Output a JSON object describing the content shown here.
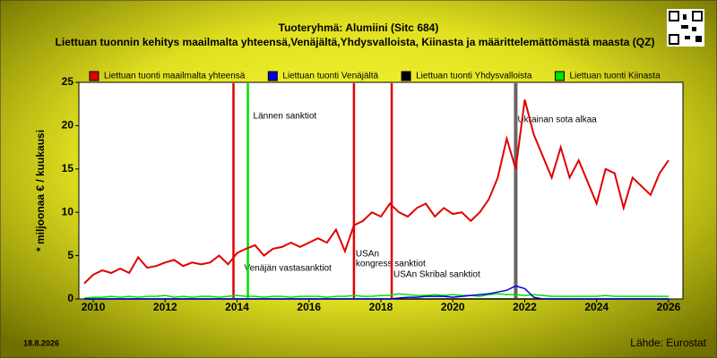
{
  "chart_data": {
    "type": "line",
    "title": "Tuoteryhmä: Alumiini (Sitc 684)",
    "subtitle": "Liettuan tuonnin kehitys maailmalta yhteensä,Venäjältä,Yhdysvalloista, Kiinasta ja määrittelemättömästä maasta (QZ)",
    "y_label": "* miljoonaa € / kuukausi",
    "date": "18.8.2026",
    "source": "Lähde: Eurostat",
    "xlim": [
      2009.6,
      2026.4
    ],
    "xticks": [
      2010,
      2012,
      2014,
      2016,
      2018,
      2020,
      2022,
      2024,
      2026
    ],
    "ylim": [
      0,
      25
    ],
    "yticks": [
      0,
      5,
      10,
      15,
      20,
      25
    ],
    "grid": false,
    "x": [
      2009.75,
      2010,
      2010.25,
      2010.5,
      2010.75,
      2011,
      2011.25,
      2011.5,
      2011.75,
      2012,
      2012.25,
      2012.5,
      2012.75,
      2013,
      2013.25,
      2013.5,
      2013.75,
      2014,
      2014.25,
      2014.5,
      2014.75,
      2015,
      2015.25,
      2015.5,
      2015.75,
      2016,
      2016.25,
      2016.5,
      2016.75,
      2017,
      2017.25,
      2017.5,
      2017.75,
      2018,
      2018.25,
      2018.5,
      2018.75,
      2019,
      2019.25,
      2019.5,
      2019.75,
      2020,
      2020.25,
      2020.5,
      2020.75,
      2021,
      2021.25,
      2021.5,
      2021.75,
      2022,
      2022.25,
      2022.5,
      2022.75,
      2023,
      2023.25,
      2023.5,
      2023.75,
      2024,
      2024.25,
      2024.5,
      2024.75,
      2025,
      2025.25,
      2025.5,
      2025.75,
      2026
    ],
    "series": [
      {
        "name": "Liettuan tuonti maailmalta yhteensä",
        "color": "#e00000",
        "values": [
          1.8,
          2.8,
          3.3,
          3.0,
          3.5,
          3.0,
          4.8,
          3.6,
          3.8,
          4.2,
          4.5,
          3.8,
          4.2,
          4.0,
          4.2,
          5.0,
          4.0,
          5.3,
          5.8,
          6.2,
          5.0,
          5.8,
          6.0,
          6.5,
          6.0,
          6.5,
          7.0,
          6.5,
          8.0,
          5.5,
          8.5,
          9.0,
          10.0,
          9.5,
          11.0,
          10.0,
          9.5,
          10.5,
          11.0,
          9.5,
          10.5,
          9.8,
          10.0,
          9.0,
          10.0,
          11.5,
          14.0,
          18.5,
          15.0,
          23.0,
          19.0,
          16.5,
          14.0,
          17.5,
          14.0,
          16.0,
          13.5,
          11.0,
          15.0,
          14.5,
          10.5,
          14.0,
          13.0,
          12.0,
          14.5,
          16.0
        ]
      },
      {
        "name": "Liettuan tuonti Venäjältä",
        "color": "#0000e0",
        "values": [
          0,
          0,
          0,
          0,
          0,
          0,
          0,
          0,
          0,
          0,
          0,
          0,
          0,
          0,
          0,
          0,
          0,
          0,
          0,
          0,
          0,
          0,
          0,
          0,
          0,
          0,
          0,
          0,
          0,
          0,
          0,
          0,
          0,
          0,
          0,
          0.1,
          0.2,
          0.2,
          0.3,
          0.3,
          0.3,
          0.2,
          0.3,
          0.4,
          0.5,
          0.6,
          0.8,
          1.0,
          1.5,
          1.2,
          0.2,
          0,
          0,
          0,
          0,
          0,
          0,
          0,
          0,
          0,
          0,
          0,
          0,
          0,
          0,
          0
        ]
      },
      {
        "name": "Liettuan tuonti Yhdysvalloista",
        "color": "#000000",
        "values": [
          0,
          0,
          0,
          0,
          0,
          0,
          0,
          0,
          0,
          0,
          0,
          0,
          0,
          0,
          0,
          0,
          0,
          0,
          0,
          0,
          0,
          0,
          0,
          0,
          0,
          0,
          0,
          0,
          0,
          0,
          0,
          0,
          0,
          0,
          0,
          0,
          0,
          0,
          0,
          0,
          0,
          0,
          0,
          0,
          0,
          0,
          0,
          0,
          0,
          0,
          0,
          0,
          0,
          0,
          0,
          0,
          0,
          0,
          0,
          0,
          0,
          0,
          0,
          0,
          0,
          0
        ]
      },
      {
        "name": "Liettuan tuonti Kiinasta",
        "color": "#00e000",
        "values": [
          0.1,
          0.2,
          0.2,
          0.3,
          0.2,
          0.3,
          0.2,
          0.3,
          0.3,
          0.4,
          0.2,
          0.3,
          0.2,
          0.3,
          0.3,
          0.2,
          0.3,
          0.4,
          0.3,
          0.3,
          0.2,
          0.3,
          0.3,
          0.2,
          0.3,
          0.3,
          0.3,
          0.2,
          0.3,
          0.3,
          0.4,
          0.3,
          0.3,
          0.4,
          0.4,
          0.6,
          0.5,
          0.4,
          0.4,
          0.5,
          0.4,
          0.5,
          0.4,
          0.4,
          0.3,
          0.5,
          0.6,
          0.5,
          0.5,
          0.4,
          0.5,
          0.4,
          0.3,
          0.3,
          0.3,
          0.3,
          0.3,
          0.3,
          0.4,
          0.3,
          0.3,
          0.3,
          0.3,
          0.3,
          0.3,
          0.3
        ]
      }
    ],
    "events": [
      {
        "x": 2013.9,
        "color": "#e00000",
        "label": [
          "Venäjän vastasanktiot"
        ]
      },
      {
        "x": 2014.3,
        "color": "#00e000",
        "label": [
          "Lännen sanktiot"
        ]
      },
      {
        "x": 2017.25,
        "color": "#e00000",
        "label": [
          "USAn",
          "kongress sanktiot"
        ]
      },
      {
        "x": 2018.3,
        "color": "#e00000",
        "label": [
          "USAn Skribal sanktiot"
        ]
      },
      {
        "x": 2021.75,
        "color": "#666666",
        "label": [
          "Ukrainan sota alkaa"
        ]
      }
    ]
  }
}
